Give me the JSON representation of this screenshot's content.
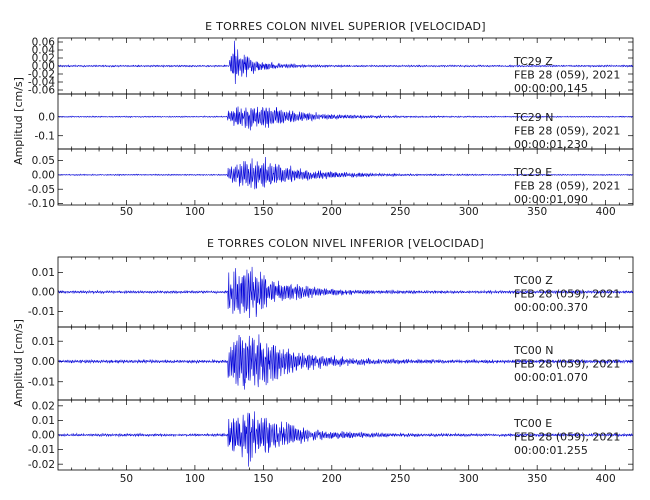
{
  "chart_data": [
    {
      "type": "line",
      "title": "E TORRES COLON NIVEL SUPERIOR [VELOCIDAD]",
      "ylabel": "Amplitud [cm/s]",
      "xlabel": "",
      "xlim": [
        0,
        420
      ],
      "xticks": [
        "50",
        "100",
        "150",
        "200",
        "250",
        "300",
        "350",
        "400"
      ],
      "grid": false,
      "panels": [
        {
          "name": "TC29 Z",
          "annotation": [
            "TC29    Z",
            "FEB 28 (059), 2021",
            "00:00:00.145"
          ],
          "yticks": [
            "0.06",
            "0.04",
            "0.02",
            "0.00",
            "-0.02",
            "-0.04",
            "-0.06"
          ],
          "ylim": [
            -0.07,
            0.07
          ],
          "onset": 125,
          "peak_amplitude": 0.05,
          "peak_time": 128,
          "decay": 14,
          "noise": 0.002
        },
        {
          "name": "TC29 N",
          "annotation": [
            "TC29    N",
            "FEB 28 (059), 2021",
            "00:00:01.230"
          ],
          "yticks": [
            "0.0",
            "-0.1"
          ],
          "ylim": [
            -0.17,
            0.12
          ],
          "onset": 124,
          "peak_amplitude": 0.07,
          "peak_time": 148,
          "decay": 28,
          "noise": 0.003
        },
        {
          "name": "TC29 E",
          "annotation": [
            "TC29    E",
            "FEB 28 (059), 2021",
            "00:00:01.090"
          ],
          "yticks": [
            "0.05",
            "0.00",
            "-0.05",
            "-0.10"
          ],
          "ylim": [
            -0.105,
            0.09
          ],
          "onset": 124,
          "peak_amplitude": 0.055,
          "peak_time": 148,
          "decay": 30,
          "noise": 0.002
        }
      ]
    },
    {
      "type": "line",
      "title": "E TORRES COLON NIVEL INFERIOR [VELOCIDAD]",
      "ylabel": "Amplitud [cm/s]",
      "xlabel": "",
      "xlim": [
        0,
        420
      ],
      "xticks": [
        "50",
        "100",
        "150",
        "200",
        "250",
        "300",
        "350",
        "400"
      ],
      "grid": false,
      "panels": [
        {
          "name": "TC00 Z",
          "annotation": [
            "TC00    Z",
            "FEB 28 (059), 2021",
            "00:00:00.370"
          ],
          "yticks": [
            "0.01",
            "0.00",
            "-0.01"
          ],
          "ylim": [
            -0.018,
            0.018
          ],
          "onset": 124,
          "peak_amplitude": 0.015,
          "peak_time": 135,
          "decay": 26,
          "noise": 0.0006
        },
        {
          "name": "TC00 N",
          "annotation": [
            "TC00    N",
            "FEB 28 (059), 2021",
            "00:00:01.070"
          ],
          "yticks": [
            "0.01",
            "0.00",
            "-0.01"
          ],
          "ylim": [
            -0.019,
            0.017
          ],
          "onset": 124,
          "peak_amplitude": 0.016,
          "peak_time": 138,
          "decay": 30,
          "noise": 0.0007
        },
        {
          "name": "TC00 E",
          "annotation": [
            "TC00    E",
            "FEB 28 (059), 2021",
            "00:00:01.255"
          ],
          "yticks": [
            "0.02",
            "0.01",
            "0.00",
            "-0.01",
            "-0.02"
          ],
          "ylim": [
            -0.024,
            0.024
          ],
          "onset": 124,
          "peak_amplitude": 0.018,
          "peak_time": 140,
          "decay": 28,
          "noise": 0.0008
        }
      ]
    }
  ]
}
